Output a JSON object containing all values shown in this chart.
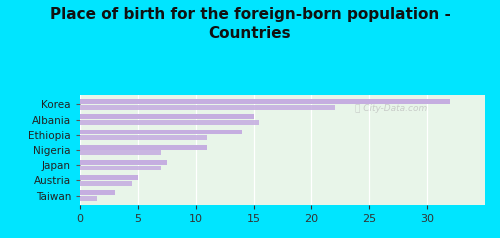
{
  "title": "Place of birth for the foreign-born population -\nCountries",
  "categories": [
    "Korea",
    "Albania",
    "Ethiopia",
    "Nigeria",
    "Japan",
    "Austria",
    "Taiwan"
  ],
  "values1": [
    32.0,
    15.0,
    14.0,
    11.0,
    7.5,
    5.0,
    3.0
  ],
  "values2": [
    22.0,
    15.5,
    11.0,
    7.0,
    7.0,
    4.5,
    1.5
  ],
  "bar_color": "#c5aee0",
  "background_chart": "#e8f5e9",
  "background_outer": "#00e5ff",
  "xlim": [
    0,
    35
  ],
  "xticks": [
    0,
    5,
    10,
    15,
    20,
    25,
    30
  ],
  "watermark": "Ⓜ City-Data.com",
  "title_fontsize": 11,
  "label_fontsize": 7.5,
  "tick_fontsize": 8
}
